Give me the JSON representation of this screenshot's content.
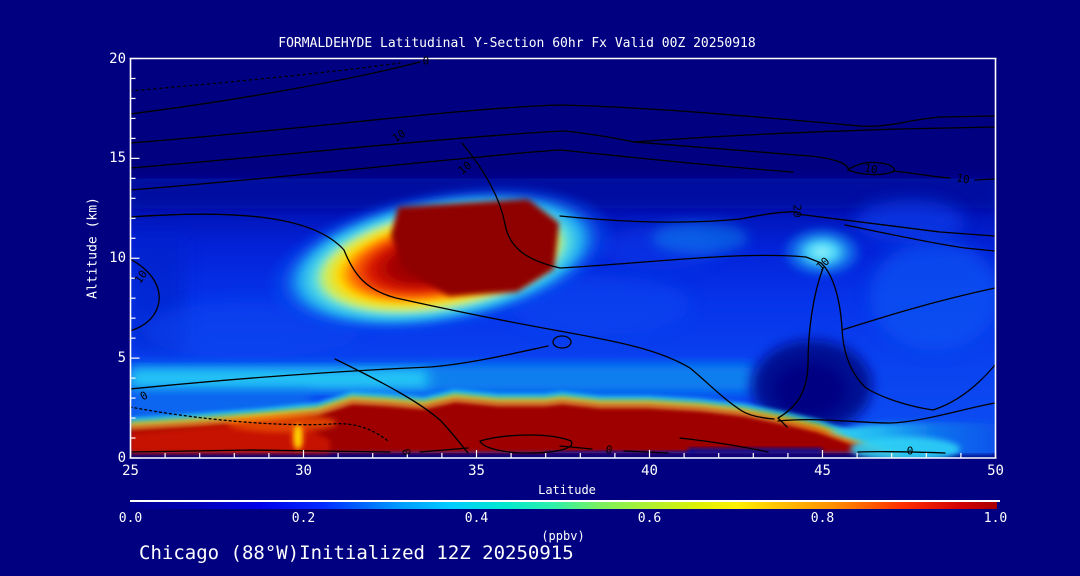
{
  "figure": {
    "title": "FORMALDEHYDE Latitudinal Y-Section 60hr  Fx Valid 00Z 20250918",
    "annotation": "Chicago (88°W)Initialized 12Z 20250915",
    "background_color": "#000080",
    "text_color": "#ffffff"
  },
  "chart_data": {
    "type": "heatmap",
    "title": "FORMALDEHYDE Latitudinal Y-Section 60hr  Fx Valid 00Z 20250918",
    "xlabel": "Latitude",
    "ylabel": "Altitude (km)",
    "units_label": "(ppbv)",
    "x_range": [
      25,
      50
    ],
    "y_range": [
      0,
      20
    ],
    "x_tick_labels": [
      "25",
      "30",
      "35",
      "40",
      "45",
      "50"
    ],
    "x_tick_values": [
      25,
      30,
      35,
      40,
      45,
      50
    ],
    "y_tick_labels": [
      "0",
      "5",
      "10",
      "15",
      "20"
    ],
    "y_tick_values": [
      0,
      5,
      10,
      15,
      20
    ],
    "minor_tick_step_x_deg": 1,
    "minor_tick_step_y_km": 1,
    "filled_field_top_altitude_km": 14,
    "colorbar": {
      "min": 0.0,
      "max": 1.0,
      "units": "ppbv",
      "tick_labels": [
        "0.0",
        "0.2",
        "0.4",
        "0.6",
        "0.8",
        "1.0"
      ],
      "tick_values": [
        0.0,
        0.2,
        0.4,
        0.6,
        0.8,
        1.0
      ],
      "colormap_stops": [
        "#000090",
        "#0028FF",
        "#00CCFF",
        "#30F0A8",
        "#B0F030",
        "#FFF000",
        "#FF9000",
        "#FF3000",
        "#A80000"
      ]
    },
    "grid_estimate": {
      "lat_deg": [
        25,
        27.5,
        30,
        32.5,
        35,
        37.5,
        40,
        42.5,
        45,
        47.5,
        50
      ],
      "alt_km": [
        0,
        2,
        4,
        6,
        8,
        10,
        12,
        14
      ],
      "values_ppbv": [
        [
          0.95,
          1.0,
          1.0,
          1.0,
          1.0,
          1.0,
          1.0,
          1.0,
          1.0,
          0.5,
          0.3
        ],
        [
          0.7,
          0.95,
          1.0,
          1.0,
          1.0,
          1.0,
          1.0,
          1.0,
          0.45,
          0.3,
          0.3
        ],
        [
          0.35,
          0.35,
          0.3,
          0.3,
          0.35,
          0.35,
          0.3,
          0.3,
          0.15,
          0.3,
          0.3
        ],
        [
          0.2,
          0.25,
          0.25,
          0.25,
          0.3,
          0.25,
          0.2,
          0.2,
          0.05,
          0.2,
          0.25
        ],
        [
          0.15,
          0.3,
          0.4,
          0.5,
          0.55,
          0.35,
          0.25,
          0.2,
          0.1,
          0.25,
          0.2
        ],
        [
          0.15,
          0.2,
          0.4,
          0.7,
          1.0,
          0.95,
          0.3,
          0.25,
          0.45,
          0.25,
          0.15
        ],
        [
          0.1,
          0.15,
          0.2,
          0.45,
          0.9,
          0.5,
          0.2,
          0.2,
          0.3,
          0.2,
          0.1
        ],
        [
          0.05,
          0.05,
          0.08,
          0.1,
          0.12,
          0.1,
          0.08,
          0.1,
          0.1,
          0.08,
          0.05
        ]
      ]
    },
    "overlay_contours": {
      "line_color": "#000000",
      "labels_seen": [
        "0",
        "10",
        "20"
      ],
      "labels": [
        {
          "text": "0",
          "lat": 33.54,
          "alt": 19.87,
          "rot": 0
        },
        {
          "text": "10",
          "lat": 32.76,
          "alt": 16.12,
          "rot": -35
        },
        {
          "text": "10",
          "lat": 34.67,
          "alt": 14.52,
          "rot": -40
        },
        {
          "text": "10",
          "lat": 46.4,
          "alt": 14.47,
          "rot": 10
        },
        {
          "text": "10",
          "lat": 49.06,
          "alt": 13.97,
          "rot": 10
        },
        {
          "text": "20",
          "lat": 44.26,
          "alt": 12.37,
          "rot": 90
        },
        {
          "text": "10",
          "lat": 45.02,
          "alt": 9.71,
          "rot": -45
        },
        {
          "text": "10",
          "lat": 25.3,
          "alt": 9.06,
          "rot": -55
        },
        {
          "text": "0",
          "lat": 25.39,
          "alt": 3.1,
          "rot": -30
        },
        {
          "text": "0",
          "lat": 32.96,
          "alt": 0.3,
          "rot": 75
        },
        {
          "text": "0",
          "lat": 38.83,
          "alt": 0.4,
          "rot": 10
        },
        {
          "text": "0",
          "lat": 47.53,
          "alt": 0.35,
          "rot": 0
        }
      ]
    }
  }
}
